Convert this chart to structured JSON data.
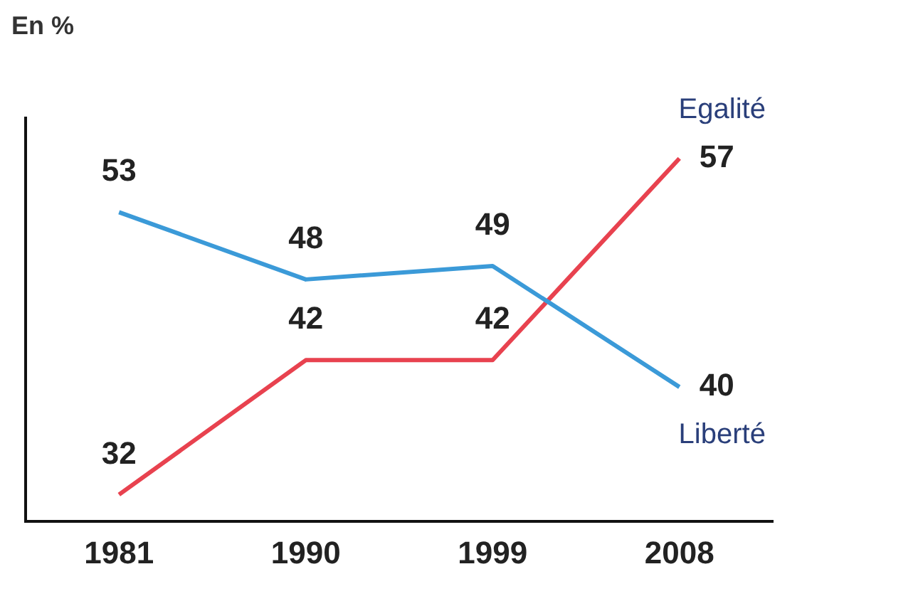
{
  "chart_data": {
    "type": "line",
    "ylabel": "En %",
    "categories": [
      "1981",
      "1990",
      "1999",
      "2008"
    ],
    "series": [
      {
        "name": "Liberté",
        "color": "#3b9ad8",
        "values": [
          53,
          48,
          49,
          40
        ]
      },
      {
        "name": "Egalité",
        "color": "#e8424f",
        "values": [
          32,
          42,
          42,
          57
        ]
      }
    ],
    "data_labels": true,
    "legend": false,
    "grid": false,
    "marker": "none",
    "line_style": "solid"
  }
}
